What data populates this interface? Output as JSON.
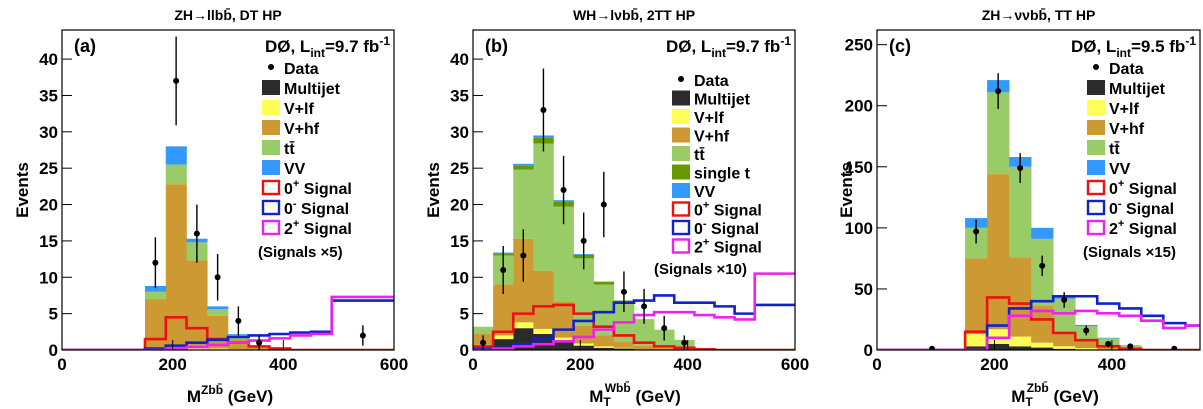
{
  "chart_data": [
    {
      "type": "bar",
      "stacked": true,
      "title": "ZH→llbb̄, DT HP",
      "panel_label": "(a)",
      "lumi_text": "DØ, L",
      "lumi_sub": "int",
      "lumi_value": "=9.7 fb",
      "lumi_sup": "-1",
      "xlabel": "M",
      "xlabel_sup": "Zbb̄",
      "xlabel_sub": "",
      "xlabel_unit": " (GeV)",
      "ylabel": "Events",
      "xlim": [
        0,
        600
      ],
      "ylim": [
        0,
        44
      ],
      "xticks": [
        0,
        200,
        400,
        600
      ],
      "yticks": [
        0,
        5,
        10,
        15,
        20,
        25,
        30,
        35,
        40
      ],
      "bin_edges": [
        0,
        37.5,
        75,
        112.5,
        150,
        187.5,
        225,
        262.5,
        300,
        337.5,
        375,
        412.5,
        450,
        487.5,
        525,
        562.5,
        600
      ],
      "stack": [
        {
          "name": "Multijet",
          "values": [
            0,
            0,
            0,
            0,
            0,
            0,
            0,
            0,
            0,
            0,
            0,
            0,
            0,
            0,
            0,
            0
          ]
        },
        {
          "name": "V+lf",
          "values": [
            0,
            0,
            0,
            0,
            0.2,
            0.3,
            0.3,
            0.2,
            0.1,
            0,
            0,
            0,
            0,
            0,
            0,
            0
          ]
        },
        {
          "name": "V+hf",
          "values": [
            0,
            0,
            0,
            0,
            6.8,
            22.5,
            12,
            4.5,
            1.4,
            0.4,
            0.2,
            0,
            0,
            0,
            0,
            0
          ]
        },
        {
          "name": "tt̄",
          "values": [
            0,
            0,
            0,
            0,
            1,
            2.7,
            2.5,
            0.9,
            0.6,
            0.2,
            0.2,
            0,
            0,
            0,
            0,
            0
          ]
        },
        {
          "name": "VV",
          "values": [
            0,
            0,
            0,
            0,
            0.8,
            2.5,
            0.5,
            0.4,
            0.1,
            0,
            0,
            0,
            0,
            0,
            0,
            0
          ]
        }
      ],
      "signals": [
        {
          "name": "0+ Signal",
          "values": [
            0,
            0,
            0,
            0,
            1.5,
            4.5,
            3,
            1.5,
            1,
            0.5,
            0.2,
            0,
            0,
            0,
            0,
            0
          ]
        },
        {
          "name": "0- Signal",
          "values": [
            0,
            0,
            0,
            0,
            0.2,
            0.6,
            1,
            1.4,
            1.8,
            2,
            2.2,
            2.4,
            2.5,
            6.8,
            6.8,
            6.8
          ]
        },
        {
          "name": "2+ Signal",
          "values": [
            0,
            0,
            0,
            0,
            0,
            0.2,
            0.4,
            0.7,
            1,
            1.3,
            1.6,
            2,
            2.2,
            7.3,
            7.3,
            7.3
          ]
        }
      ],
      "data_points": [
        {
          "x": 168.75,
          "y": 12,
          "err": 3.5
        },
        {
          "x": 206.25,
          "y": 37,
          "err": 6.1
        },
        {
          "x": 243.75,
          "y": 16,
          "err": 4
        },
        {
          "x": 281.25,
          "y": 10,
          "err": 3.2
        },
        {
          "x": 318.75,
          "y": 4,
          "err": 2
        },
        {
          "x": 356.25,
          "y": 1,
          "err": 1
        },
        {
          "x": 543.75,
          "y": 2,
          "err": 1.4
        }
      ],
      "legend_order": [
        "Data",
        "Multijet",
        "V+lf",
        "V+hf",
        "tt̄",
        "VV",
        "0+ Signal",
        "0- Signal",
        "2+ Signal"
      ],
      "signal_scale_note": "(Signals ×5)"
    },
    {
      "type": "bar",
      "stacked": true,
      "title": "WH→lνbb̄, 2TT HP",
      "panel_label": "(b)",
      "lumi_text": "DØ, L",
      "lumi_sub": "int",
      "lumi_value": "=9.7 fb",
      "lumi_sup": "-1",
      "xlabel": "M",
      "xlabel_sup": "Wbb̄",
      "xlabel_sub": "T",
      "xlabel_unit": " (GeV)",
      "ylabel": "Events",
      "xlim": [
        0,
        600
      ],
      "ylim": [
        0,
        44
      ],
      "xticks": [
        0,
        200,
        400,
        600
      ],
      "yticks": [
        0,
        5,
        10,
        15,
        20,
        25,
        30,
        35,
        40
      ],
      "bin_edges": [
        0,
        37.5,
        75,
        112.5,
        150,
        187.5,
        225,
        262.5,
        300,
        337.5,
        375,
        412.5,
        450,
        487.5,
        525,
        562.5,
        600
      ],
      "stack": [
        {
          "name": "Multijet",
          "values": [
            0.5,
            1.5,
            3,
            2.2,
            1.2,
            0.6,
            0.3,
            0.2,
            0.1,
            0,
            0,
            0,
            0,
            0,
            0,
            0
          ]
        },
        {
          "name": "V+lf",
          "values": [
            0.2,
            0.5,
            0.8,
            0.7,
            0.5,
            0.3,
            0.2,
            0.1,
            0,
            0,
            0,
            0,
            0,
            0,
            0,
            0
          ]
        },
        {
          "name": "V+hf",
          "values": [
            1.5,
            7,
            11.5,
            8,
            5,
            2.5,
            1.5,
            0.8,
            0.5,
            0.3,
            0.2,
            0,
            0,
            0,
            0,
            0
          ]
        },
        {
          "name": "tt̄",
          "values": [
            1,
            4,
            9.5,
            17.5,
            13,
            9.2,
            7,
            5.5,
            3.5,
            2.5,
            1.2,
            0,
            0,
            0,
            0,
            0
          ]
        },
        {
          "name": "single t",
          "values": [
            0,
            0.3,
            0.6,
            0.8,
            0.7,
            0.5,
            0.4,
            0.2,
            0.1,
            0,
            0,
            0,
            0,
            0,
            0,
            0
          ]
        },
        {
          "name": "VV",
          "values": [
            0,
            0.1,
            0.2,
            0.3,
            0.2,
            0.1,
            0,
            0,
            0,
            0,
            0,
            0,
            0,
            0,
            0,
            0
          ]
        }
      ],
      "signals": [
        {
          "name": "0+ Signal",
          "values": [
            0.5,
            2.5,
            5,
            6,
            6.2,
            5,
            3.2,
            2,
            1,
            0.5,
            0.3,
            0.1,
            0,
            0,
            0,
            0
          ]
        },
        {
          "name": "0- Signal",
          "values": [
            0.1,
            0.3,
            0.8,
            1.5,
            2.8,
            4,
            5.2,
            6.5,
            6.8,
            7.5,
            6.5,
            6.5,
            6,
            5,
            6.2,
            6.2
          ]
        },
        {
          "name": "2+ Signal",
          "values": [
            0,
            0.2,
            0.5,
            0.8,
            1.2,
            1.8,
            2.8,
            3.8,
            4.8,
            5.2,
            5.2,
            4.8,
            4.5,
            4.2,
            10.5,
            10.5
          ]
        }
      ],
      "data_points": [
        {
          "x": 56.25,
          "y": 11,
          "err": 3.3
        },
        {
          "x": 93.75,
          "y": 13,
          "err": 3.6
        },
        {
          "x": 131.25,
          "y": 33,
          "err": 5.7
        },
        {
          "x": 168.75,
          "y": 22,
          "err": 4.7
        },
        {
          "x": 206.25,
          "y": 15,
          "err": 3.9
        },
        {
          "x": 243.75,
          "y": 20,
          "err": 4.5
        },
        {
          "x": 281.25,
          "y": 8,
          "err": 2.8
        },
        {
          "x": 318.75,
          "y": 6,
          "err": 2.4
        },
        {
          "x": 356.25,
          "y": 3,
          "err": 1.7
        },
        {
          "x": 393.75,
          "y": 1,
          "err": 1
        }
      ],
      "extra_points": [
        {
          "x": 18.75,
          "y": 1,
          "err": 1
        }
      ],
      "legend_order": [
        "Data",
        "Multijet",
        "V+lf",
        "V+hf",
        "tt̄",
        "single t",
        "VV",
        "0+ Signal",
        "0- Signal",
        "2+ Signal"
      ],
      "signal_scale_note": "(Signals ×10)"
    },
    {
      "type": "bar",
      "stacked": true,
      "title": "ZH→ννbb̄, TT HP",
      "panel_label": "(c)",
      "lumi_text": "DØ, L",
      "lumi_sub": "int",
      "lumi_value": "=9.5 fb",
      "lumi_sup": "-1",
      "xlabel": "M",
      "xlabel_sup": "Zbb̄",
      "xlabel_sub": "T",
      "xlabel_unit": " (GeV)",
      "ylabel": "Events",
      "xlim": [
        0,
        550
      ],
      "ylim": [
        0,
        262
      ],
      "xticks": [
        0,
        200,
        400
      ],
      "yticks": [
        0,
        50,
        100,
        150,
        200,
        250
      ],
      "bin_edges": [
        0,
        37.5,
        75,
        112.5,
        150,
        187.5,
        225,
        262.5,
        300,
        337.5,
        375,
        412.5,
        450,
        487.5,
        525,
        550
      ],
      "stack": [
        {
          "name": "Multijet",
          "values": [
            0,
            0,
            0,
            0,
            3,
            5,
            3,
            2,
            1,
            0.5,
            0,
            0,
            0,
            0,
            0
          ]
        },
        {
          "name": "V+lf",
          "values": [
            0,
            0,
            0,
            0,
            10,
            12,
            8,
            4,
            2,
            1,
            0.5,
            0,
            0,
            0,
            0
          ]
        },
        {
          "name": "V+hf",
          "values": [
            0,
            0,
            0,
            0,
            62,
            127,
            65,
            30,
            12,
            6,
            3,
            1,
            0,
            0,
            0
          ]
        },
        {
          "name": "tt̄",
          "values": [
            0,
            0,
            0,
            0,
            25,
            67,
            74,
            55,
            27,
            12,
            6,
            3,
            1,
            0,
            0
          ]
        },
        {
          "name": "VV",
          "values": [
            0,
            0,
            0,
            0,
            8,
            10,
            8,
            9,
            3,
            1,
            0.5,
            0,
            0,
            0,
            0
          ]
        }
      ],
      "signals": [
        {
          "name": "0+ Signal",
          "values": [
            0,
            0,
            0,
            0,
            15,
            43,
            38,
            25,
            14,
            8,
            3,
            1,
            0,
            0,
            0
          ]
        },
        {
          "name": "0- Signal",
          "values": [
            0,
            0,
            0,
            0,
            0,
            20,
            34,
            40,
            44,
            44,
            38,
            34,
            28,
            22,
            20
          ]
        },
        {
          "name": "2+ Signal",
          "values": [
            0,
            0,
            0,
            0,
            0,
            10,
            28,
            32,
            30,
            32,
            30,
            28,
            24,
            18,
            20
          ]
        }
      ],
      "data_points": [
        {
          "x": 93.75,
          "y": 1,
          "err": 1
        },
        {
          "x": 168.75,
          "y": 97,
          "err": 9.8
        },
        {
          "x": 206.25,
          "y": 212,
          "err": 14.6
        },
        {
          "x": 243.75,
          "y": 149,
          "err": 12.2
        },
        {
          "x": 281.25,
          "y": 69,
          "err": 8.3
        },
        {
          "x": 318.75,
          "y": 41,
          "err": 6.4
        },
        {
          "x": 356.25,
          "y": 16,
          "err": 4
        },
        {
          "x": 393.75,
          "y": 5,
          "err": 2.2
        },
        {
          "x": 431.25,
          "y": 3,
          "err": 1.7
        },
        {
          "x": 506.25,
          "y": 1,
          "err": 1
        }
      ],
      "legend_order": [
        "Data",
        "Multijet",
        "V+lf",
        "V+hf",
        "tt̄",
        "VV",
        "0+ Signal",
        "0- Signal",
        "2+ Signal"
      ],
      "signal_scale_note": "(Signals ×15)"
    }
  ],
  "colors": {
    "Multijet": "#2b2b2b",
    "V+lf": "#ffff55",
    "V+hf": "#cc9933",
    "tt̄": "#99cc66",
    "single t": "#669900",
    "VV": "#3399ff",
    "0+ Signal": "#ee1111",
    "0- Signal": "#1122cc",
    "2+ Signal": "#ee22ee",
    "Data": "#000000"
  }
}
